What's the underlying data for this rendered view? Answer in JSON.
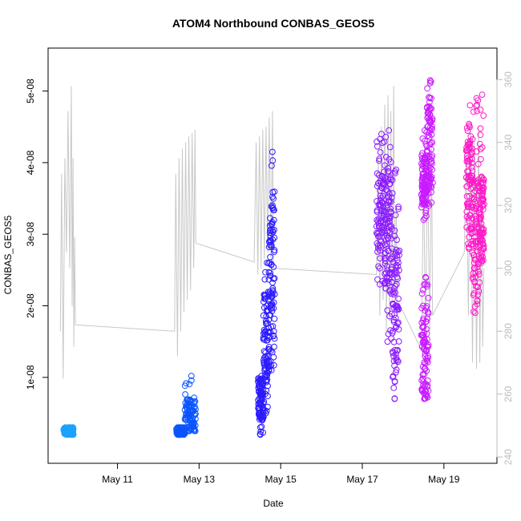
{
  "chart_data": {
    "type": "scatter",
    "title": "ATOM4 Northbound CONBAS_GEOS5",
    "xlabel": "Date",
    "ylabel": "CONBAS_GEOS5",
    "x_unit": "days (date axis)",
    "x_ticks": [
      {
        "day": 11,
        "label": "May 11"
      },
      {
        "day": 13,
        "label": "May 13"
      },
      {
        "day": 15,
        "label": "May 15"
      },
      {
        "day": 17,
        "label": "May 17"
      },
      {
        "day": 19,
        "label": "May 19"
      }
    ],
    "xlim": [
      9.3,
      20.3
    ],
    "ylim": [
      -2e-09,
      5.6e-08
    ],
    "y_ticks": [
      {
        "value": 1e-08,
        "label": "1e-08"
      },
      {
        "value": 2e-08,
        "label": "2e-08"
      },
      {
        "value": 3e-08,
        "label": "3e-08"
      },
      {
        "value": 4e-08,
        "label": "4e-08"
      },
      {
        "value": 5e-08,
        "label": "5e-08"
      }
    ],
    "y2lim": [
      238,
      370
    ],
    "y2_ticks": [
      240,
      260,
      280,
      300,
      320,
      340,
      360
    ],
    "grid": false,
    "series": [
      {
        "kind": "points",
        "color": "#1aa3ff",
        "clusters": [
          {
            "x0": 9.68,
            "x1": 9.92,
            "y_low": 2e-09,
            "y_high": 3e-09,
            "min": 2e-09,
            "max": 3e-09
          }
        ]
      },
      {
        "kind": "points",
        "color": "#0a55ff",
        "clusters": [
          {
            "x0": 12.45,
            "x1": 12.65,
            "y_low": 2e-09,
            "y_high": 3e-09,
            "min": 2e-09,
            "max": 3e-09
          },
          {
            "x0": 12.65,
            "x1": 12.92,
            "y_low": 3e-09,
            "y_high": 7e-09,
            "min": 2.5e-09,
            "max": 1.02e-08
          }
        ]
      },
      {
        "kind": "points",
        "color": "#2b1aff",
        "clusters": [
          {
            "x0": 14.45,
            "x1": 14.58,
            "y_low": 4e-09,
            "y_high": 1e-08,
            "min": 2e-09,
            "max": 1.02e-08
          },
          {
            "x0": 14.58,
            "x1": 14.72,
            "y_low": 1e-08,
            "y_high": 2.2e-08,
            "min": 5e-09,
            "max": 2.6e-08
          },
          {
            "x0": 14.72,
            "x1": 14.85,
            "y_low": 1.5e-08,
            "y_high": 3.4e-08,
            "min": 1.1e-08,
            "max": 4.15e-08
          }
        ]
      },
      {
        "kind": "points",
        "color": "#8a1aff",
        "clusters": [
          {
            "x0": 17.35,
            "x1": 17.55,
            "y_low": 2.8e-08,
            "y_high": 3.9e-08,
            "min": 2.3e-08,
            "max": 4.4e-08
          },
          {
            "x0": 17.55,
            "x1": 17.72,
            "y_low": 2.2e-08,
            "y_high": 3.8e-08,
            "min": 1.5e-08,
            "max": 4.45e-08
          },
          {
            "x0": 17.72,
            "x1": 17.9,
            "y_low": 1.1e-08,
            "y_high": 2.8e-08,
            "min": 7e-09,
            "max": 3.9e-08
          }
        ]
      },
      {
        "kind": "points",
        "color": "#c81aff",
        "clusters": [
          {
            "x0": 18.45,
            "x1": 18.58,
            "y_low": 3.4e-08,
            "y_high": 4.1e-08,
            "min": 3.2e-08,
            "max": 4.45e-08
          },
          {
            "x0": 18.45,
            "x1": 18.62,
            "y_low": 8e-09,
            "y_high": 2e-08,
            "min": 7e-09,
            "max": 2.4e-08
          },
          {
            "x0": 18.58,
            "x1": 18.72,
            "y_low": 3.6e-08,
            "y_high": 4.8e-08,
            "min": 3.4e-08,
            "max": 5.15e-08
          }
        ]
      },
      {
        "kind": "points",
        "color": "#ff1ac8",
        "clusters": [
          {
            "x0": 19.55,
            "x1": 19.7,
            "y_low": 3e-08,
            "y_high": 4.3e-08,
            "min": 2.8e-08,
            "max": 4.8e-08
          },
          {
            "x0": 19.7,
            "x1": 19.87,
            "y_low": 2.2e-08,
            "y_high": 3.8e-08,
            "min": 1.9e-08,
            "max": 4.9e-08
          },
          {
            "x0": 19.87,
            "x1": 19.98,
            "y_low": 2.8e-08,
            "y_high": 3.8e-08,
            "min": 2.6e-08,
            "max": 4.95e-08
          }
        ]
      },
      {
        "kind": "line",
        "axis": "right",
        "color": "#c8c8c8",
        "points": [
          [
            9.6,
            280
          ],
          [
            9.63,
            330
          ],
          [
            9.67,
            265
          ],
          [
            9.71,
            335
          ],
          [
            9.75,
            305
          ],
          [
            9.79,
            350
          ],
          [
            9.83,
            300
          ],
          [
            9.87,
            358
          ],
          [
            9.89,
            288
          ],
          [
            9.91,
            335
          ],
          [
            9.93,
            275
          ],
          [
            9.95,
            310
          ],
          [
            9.97,
            282
          ],
          [
            12.4,
            280
          ],
          [
            12.43,
            330
          ],
          [
            12.47,
            272
          ],
          [
            12.51,
            335
          ],
          [
            12.55,
            280
          ],
          [
            12.59,
            338
          ],
          [
            12.63,
            286
          ],
          [
            12.67,
            340
          ],
          [
            12.71,
            290
          ],
          [
            12.75,
            342
          ],
          [
            12.79,
            293
          ],
          [
            12.83,
            343
          ],
          [
            12.87,
            300
          ],
          [
            12.9,
            344
          ],
          [
            12.92,
            308
          ],
          [
            14.35,
            302
          ],
          [
            14.4,
            340
          ],
          [
            14.44,
            298
          ],
          [
            14.48,
            342
          ],
          [
            14.52,
            300
          ],
          [
            14.56,
            344
          ],
          [
            14.6,
            303
          ],
          [
            14.64,
            345
          ],
          [
            14.68,
            305
          ],
          [
            14.72,
            348
          ],
          [
            14.76,
            303
          ],
          [
            14.8,
            350
          ],
          [
            14.82,
            300
          ],
          [
            17.35,
            298
          ],
          [
            17.39,
            335
          ],
          [
            17.43,
            285
          ],
          [
            17.47,
            345
          ],
          [
            17.51,
            290
          ],
          [
            17.55,
            352
          ],
          [
            17.59,
            280
          ],
          [
            17.63,
            355
          ],
          [
            17.67,
            283
          ],
          [
            17.7,
            350
          ],
          [
            17.73,
            290
          ],
          [
            17.77,
            358
          ],
          [
            17.8,
            288
          ],
          [
            17.83,
            320
          ],
          [
            17.86,
            290
          ],
          [
            18.45,
            274
          ],
          [
            18.5,
            330
          ],
          [
            18.55,
            278
          ],
          [
            18.6,
            336
          ],
          [
            18.65,
            280
          ],
          [
            18.7,
            340
          ],
          [
            18.72,
            285
          ],
          [
            19.5,
            305
          ],
          [
            19.55,
            340
          ],
          [
            19.6,
            285
          ],
          [
            19.65,
            345
          ],
          [
            19.7,
            270
          ],
          [
            19.75,
            340
          ],
          [
            19.8,
            268
          ],
          [
            19.85,
            345
          ],
          [
            19.88,
            270
          ],
          [
            19.92,
            330
          ],
          [
            19.95,
            275
          ],
          [
            19.98,
            300
          ]
        ]
      }
    ]
  }
}
